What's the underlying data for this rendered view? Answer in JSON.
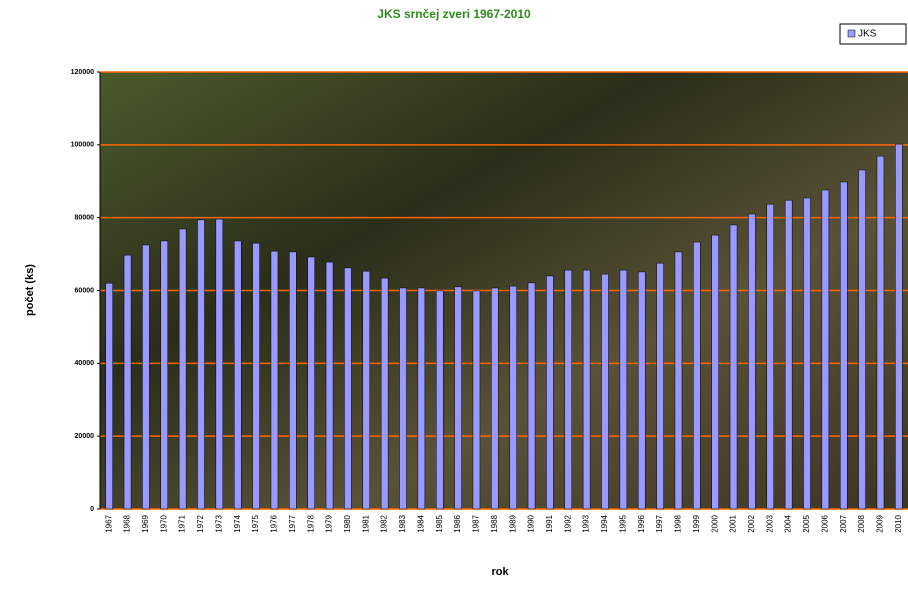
{
  "chart_data": {
    "type": "bar",
    "title": "JKS srnčej zveri 1967-2010",
    "x_label": "rok",
    "y_label": "počet (ks)",
    "categories": [
      "1967",
      "1968",
      "1969",
      "1970",
      "1971",
      "1972",
      "1973",
      "1974",
      "1975",
      "1976",
      "1977",
      "1978",
      "1979",
      "1980",
      "1981",
      "1982",
      "1983",
      "1984",
      "1985",
      "1986",
      "1987",
      "1988",
      "1989",
      "1990",
      "1991",
      "1992",
      "1993",
      "1994",
      "1995",
      "1996",
      "1997",
      "1998",
      "1999",
      "2000",
      "2001",
      "2002",
      "2003",
      "2004",
      "2005",
      "2006",
      "2007",
      "2008",
      "2009",
      "2010"
    ],
    "series": [
      {
        "name": "JKS",
        "color": "#9999ff",
        "values": [
          62000,
          69700,
          72500,
          73600,
          76900,
          79400,
          79600,
          73600,
          73000,
          70800,
          70600,
          69200,
          67800,
          66200,
          65300,
          63400,
          60700,
          60700,
          59900,
          61000,
          59900,
          60700,
          61200,
          62100,
          64000,
          65600,
          65600,
          64500,
          65600,
          65100,
          67500,
          70600,
          73300,
          75200,
          78000,
          81000,
          83700,
          84800,
          85400,
          87600,
          89800,
          93100,
          96900,
          100200
        ]
      }
    ],
    "ylim": [
      0,
      120000
    ],
    "yticks": [
      0,
      20000,
      40000,
      60000,
      80000,
      100000,
      120000
    ],
    "grid": true,
    "grid_color": "#ff6600",
    "legend": "top-right"
  }
}
